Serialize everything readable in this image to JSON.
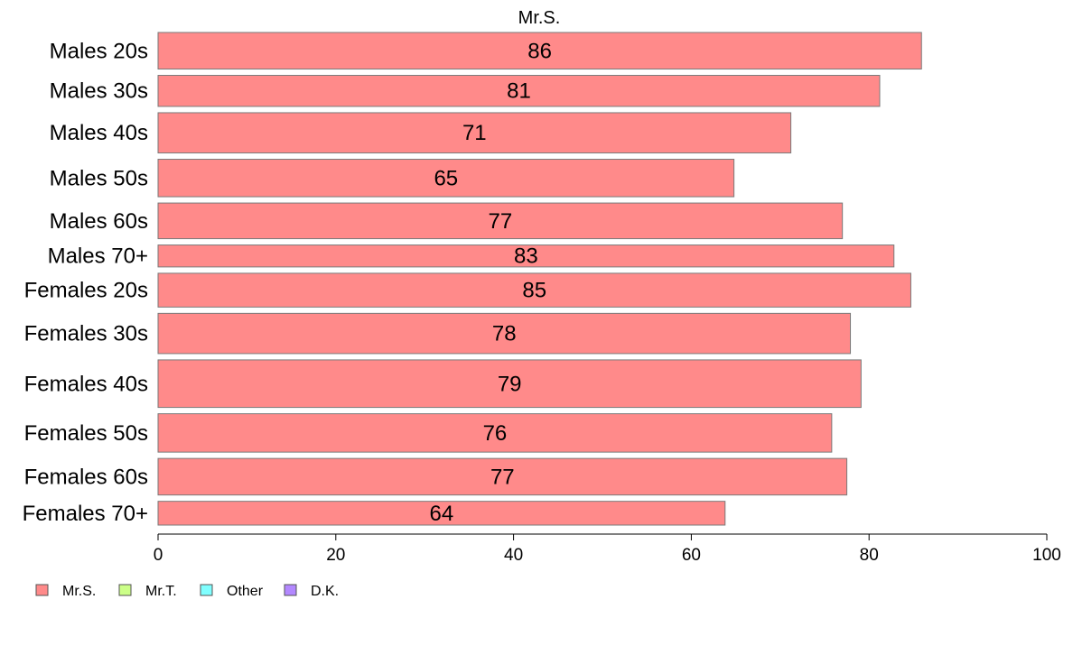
{
  "chart_data": {
    "type": "bar",
    "orientation": "horizontal",
    "title": "Mr.S.",
    "categories": [
      "Males 20s",
      "Males 30s",
      "Males 40s",
      "Males 50s",
      "Males 60s",
      "Males 70+",
      "Females 20s",
      "Females 30s",
      "Females 40s",
      "Females 50s",
      "Females 60s",
      "Females 70+"
    ],
    "relative_widths": [
      40,
      34,
      44,
      41,
      39,
      24,
      37,
      44,
      52,
      42,
      40,
      26
    ],
    "series": [
      {
        "name": "Mr.S.",
        "color": "#ff8a8a",
        "values": [
          85.9,
          81.2,
          71.2,
          64.8,
          77.0,
          82.8,
          84.7,
          77.9,
          79.1,
          75.8,
          77.5,
          63.8
        ]
      }
    ],
    "data_labels": [
      "86",
      "81",
      "71",
      "65",
      "77",
      "83",
      "85",
      "78",
      "79",
      "76",
      "77",
      "64"
    ],
    "xlim": [
      0,
      100
    ],
    "xticks": [
      "0",
      "20",
      "40",
      "60",
      "80",
      "100"
    ],
    "xtick_values": [
      0,
      20,
      40,
      60,
      80,
      100
    ],
    "grid": false,
    "legend": {
      "placement": "bottom-left",
      "entries": [
        {
          "label": "Mr.S.",
          "color": "#ff8a8a"
        },
        {
          "label": "Mr.T.",
          "color": "#ccff88"
        },
        {
          "label": "Other",
          "color": "#80ffff"
        },
        {
          "label": "D.K.",
          "color": "#b388ff"
        }
      ]
    }
  }
}
